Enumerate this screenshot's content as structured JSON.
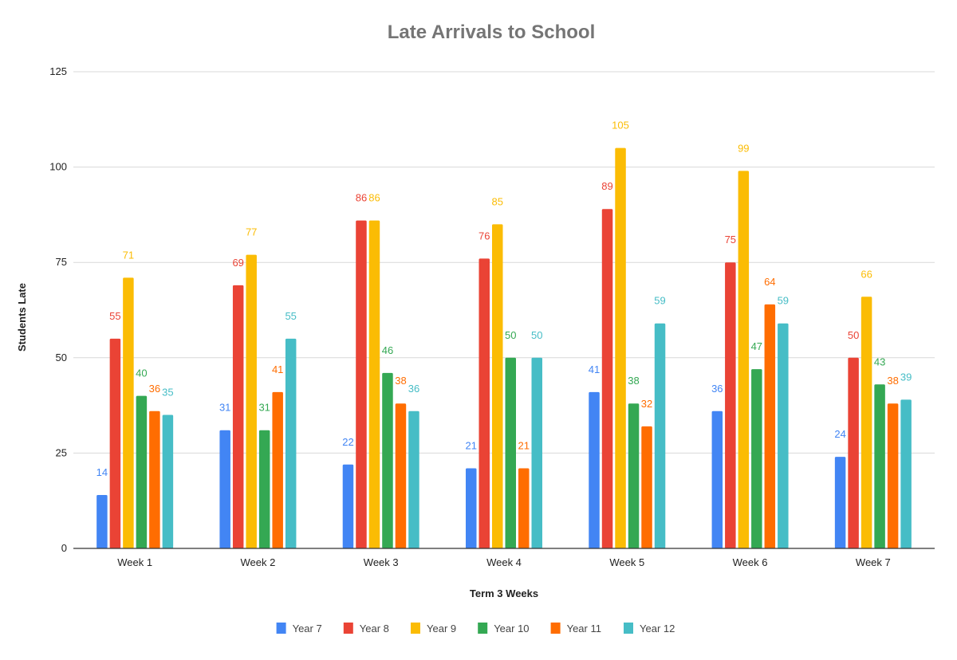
{
  "chart_data": {
    "type": "bar",
    "title": "Late Arrivals to School",
    "xlabel": "Term 3 Weeks",
    "ylabel": "Students Late",
    "ylim": [
      0,
      125
    ],
    "yticks": [
      0,
      25,
      50,
      75,
      100,
      125
    ],
    "grid": true,
    "legend_position": "bottom",
    "categories": [
      "Week 1",
      "Week 2",
      "Week 3",
      "Week 4",
      "Week 5",
      "Week 6",
      "Week 7"
    ],
    "series": [
      {
        "name": "Year 7",
        "color": "#4285f4",
        "values": [
          14,
          31,
          22,
          21,
          41,
          36,
          24
        ]
      },
      {
        "name": "Year 8",
        "color": "#ea4335",
        "values": [
          55,
          69,
          86,
          76,
          89,
          75,
          50
        ]
      },
      {
        "name": "Year 9",
        "color": "#fbbc04",
        "values": [
          71,
          77,
          86,
          85,
          105,
          99,
          66
        ]
      },
      {
        "name": "Year 10",
        "color": "#34a853",
        "values": [
          40,
          31,
          46,
          50,
          38,
          47,
          43
        ]
      },
      {
        "name": "Year 11",
        "color": "#ff6d01",
        "values": [
          36,
          41,
          38,
          21,
          32,
          64,
          38
        ]
      },
      {
        "name": "Year 12",
        "color": "#46bdc6",
        "values": [
          35,
          55,
          36,
          50,
          59,
          59,
          39
        ]
      }
    ]
  }
}
